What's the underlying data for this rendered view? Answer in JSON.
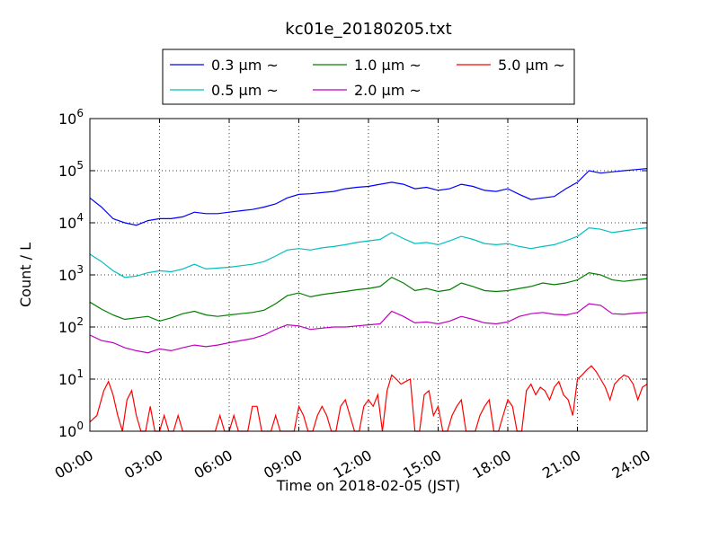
{
  "chart_data": {
    "type": "line",
    "title": "kc01e_20180205.txt",
    "xlabel": "Time on 2018-02-05 (JST)",
    "ylabel": "Count / L",
    "x_tick_labels": [
      "00:00",
      "03:00",
      "06:00",
      "09:00",
      "12:00",
      "15:00",
      "18:00",
      "21:00",
      "24:00"
    ],
    "x_tick_hours": [
      0,
      3,
      6,
      9,
      12,
      15,
      18,
      21,
      24
    ],
    "xlim_hours": [
      0,
      24
    ],
    "yscale": "log",
    "ylim": [
      1,
      1000000
    ],
    "y_tick_values": [
      1,
      10,
      100,
      1000,
      10000,
      100000,
      1000000
    ],
    "y_tick_labels": [
      {
        "base": "10",
        "exp": "0"
      },
      {
        "base": "10",
        "exp": "1"
      },
      {
        "base": "10",
        "exp": "2"
      },
      {
        "base": "10",
        "exp": "3"
      },
      {
        "base": "10",
        "exp": "4"
      },
      {
        "base": "10",
        "exp": "5"
      },
      {
        "base": "10",
        "exp": "6"
      }
    ],
    "grid": true,
    "legend_position": "top-center, above plot",
    "series": [
      {
        "name": "0.3 μm ~",
        "color": "#0000ff",
        "points": [
          [
            0,
            30000
          ],
          [
            0.5,
            20000
          ],
          [
            1,
            12000
          ],
          [
            1.5,
            10000
          ],
          [
            2,
            9000
          ],
          [
            2.5,
            11000
          ],
          [
            3,
            12000
          ],
          [
            3.5,
            12000
          ],
          [
            4,
            13000
          ],
          [
            4.5,
            16000
          ],
          [
            5,
            15000
          ],
          [
            5.5,
            15000
          ],
          [
            6,
            16000
          ],
          [
            6.5,
            17000
          ],
          [
            7,
            18000
          ],
          [
            7.5,
            20000
          ],
          [
            8,
            23000
          ],
          [
            8.5,
            30000
          ],
          [
            9,
            35000
          ],
          [
            9.5,
            36000
          ],
          [
            10,
            38000
          ],
          [
            10.5,
            40000
          ],
          [
            11,
            45000
          ],
          [
            11.5,
            48000
          ],
          [
            12,
            50000
          ],
          [
            12.5,
            55000
          ],
          [
            13,
            60000
          ],
          [
            13.5,
            55000
          ],
          [
            14,
            45000
          ],
          [
            14.5,
            48000
          ],
          [
            15,
            42000
          ],
          [
            15.5,
            45000
          ],
          [
            16,
            55000
          ],
          [
            16.5,
            50000
          ],
          [
            17,
            42000
          ],
          [
            17.5,
            40000
          ],
          [
            18,
            45000
          ],
          [
            18.5,
            35000
          ],
          [
            19,
            28000
          ],
          [
            19.5,
            30000
          ],
          [
            20,
            32000
          ],
          [
            20.5,
            45000
          ],
          [
            21,
            60000
          ],
          [
            21.5,
            100000
          ],
          [
            22,
            90000
          ],
          [
            22.5,
            95000
          ],
          [
            23,
            100000
          ],
          [
            23.5,
            105000
          ],
          [
            24,
            110000
          ]
        ]
      },
      {
        "name": "0.5 μm ~",
        "color": "#00bfbf",
        "points": [
          [
            0,
            2500
          ],
          [
            0.5,
            1800
          ],
          [
            1,
            1200
          ],
          [
            1.5,
            900
          ],
          [
            2,
            950
          ],
          [
            2.5,
            1100
          ],
          [
            3,
            1200
          ],
          [
            3.5,
            1150
          ],
          [
            4,
            1300
          ],
          [
            4.5,
            1600
          ],
          [
            5,
            1300
          ],
          [
            5.5,
            1350
          ],
          [
            6,
            1400
          ],
          [
            6.5,
            1500
          ],
          [
            7,
            1600
          ],
          [
            7.5,
            1800
          ],
          [
            8,
            2300
          ],
          [
            8.5,
            3000
          ],
          [
            9,
            3200
          ],
          [
            9.5,
            3000
          ],
          [
            10,
            3300
          ],
          [
            10.5,
            3500
          ],
          [
            11,
            3800
          ],
          [
            11.5,
            4200
          ],
          [
            12,
            4500
          ],
          [
            12.5,
            4800
          ],
          [
            13,
            6500
          ],
          [
            13.5,
            5000
          ],
          [
            14,
            4000
          ],
          [
            14.5,
            4200
          ],
          [
            15,
            3800
          ],
          [
            15.5,
            4500
          ],
          [
            16,
            5500
          ],
          [
            16.5,
            4800
          ],
          [
            17,
            4000
          ],
          [
            17.5,
            3800
          ],
          [
            18,
            4000
          ],
          [
            18.5,
            3500
          ],
          [
            19,
            3200
          ],
          [
            19.5,
            3500
          ],
          [
            20,
            3800
          ],
          [
            20.5,
            4500
          ],
          [
            21,
            5500
          ],
          [
            21.5,
            8000
          ],
          [
            22,
            7500
          ],
          [
            22.5,
            6500
          ],
          [
            23,
            7000
          ],
          [
            23.5,
            7500
          ],
          [
            24,
            8000
          ]
        ]
      },
      {
        "name": "1.0 μm ~",
        "color": "#008000",
        "points": [
          [
            0,
            300
          ],
          [
            0.5,
            220
          ],
          [
            1,
            170
          ],
          [
            1.5,
            140
          ],
          [
            2,
            150
          ],
          [
            2.5,
            160
          ],
          [
            3,
            130
          ],
          [
            3.5,
            150
          ],
          [
            4,
            180
          ],
          [
            4.5,
            200
          ],
          [
            5,
            170
          ],
          [
            5.5,
            160
          ],
          [
            6,
            170
          ],
          [
            6.5,
            180
          ],
          [
            7,
            190
          ],
          [
            7.5,
            210
          ],
          [
            8,
            280
          ],
          [
            8.5,
            400
          ],
          [
            9,
            450
          ],
          [
            9.5,
            380
          ],
          [
            10,
            420
          ],
          [
            10.5,
            450
          ],
          [
            11,
            480
          ],
          [
            11.5,
            520
          ],
          [
            12,
            550
          ],
          [
            12.5,
            600
          ],
          [
            13,
            900
          ],
          [
            13.5,
            700
          ],
          [
            14,
            500
          ],
          [
            14.5,
            550
          ],
          [
            15,
            480
          ],
          [
            15.5,
            520
          ],
          [
            16,
            700
          ],
          [
            16.5,
            600
          ],
          [
            17,
            500
          ],
          [
            17.5,
            480
          ],
          [
            18,
            500
          ],
          [
            18.5,
            550
          ],
          [
            19,
            600
          ],
          [
            19.5,
            700
          ],
          [
            20,
            650
          ],
          [
            20.5,
            700
          ],
          [
            21,
            800
          ],
          [
            21.5,
            1100
          ],
          [
            22,
            1000
          ],
          [
            22.5,
            800
          ],
          [
            23,
            750
          ],
          [
            23.5,
            800
          ],
          [
            24,
            850
          ]
        ]
      },
      {
        "name": "2.0 μm ~",
        "color": "#bf00bf",
        "points": [
          [
            0,
            70
          ],
          [
            0.5,
            55
          ],
          [
            1,
            50
          ],
          [
            1.5,
            40
          ],
          [
            2,
            35
          ],
          [
            2.5,
            32
          ],
          [
            3,
            38
          ],
          [
            3.5,
            35
          ],
          [
            4,
            40
          ],
          [
            4.5,
            45
          ],
          [
            5,
            42
          ],
          [
            5.5,
            45
          ],
          [
            6,
            50
          ],
          [
            6.5,
            55
          ],
          [
            7,
            60
          ],
          [
            7.5,
            70
          ],
          [
            8,
            90
          ],
          [
            8.5,
            110
          ],
          [
            9,
            105
          ],
          [
            9.5,
            90
          ],
          [
            10,
            95
          ],
          [
            10.5,
            100
          ],
          [
            11,
            100
          ],
          [
            11.5,
            105
          ],
          [
            12,
            110
          ],
          [
            12.5,
            115
          ],
          [
            13,
            200
          ],
          [
            13.5,
            160
          ],
          [
            14,
            120
          ],
          [
            14.5,
            125
          ],
          [
            15,
            115
          ],
          [
            15.5,
            130
          ],
          [
            16,
            160
          ],
          [
            16.5,
            140
          ],
          [
            17,
            120
          ],
          [
            17.5,
            115
          ],
          [
            18,
            125
          ],
          [
            18.5,
            160
          ],
          [
            19,
            180
          ],
          [
            19.5,
            190
          ],
          [
            20,
            175
          ],
          [
            20.5,
            170
          ],
          [
            21,
            190
          ],
          [
            21.5,
            280
          ],
          [
            22,
            260
          ],
          [
            22.5,
            180
          ],
          [
            23,
            175
          ],
          [
            23.5,
            185
          ],
          [
            24,
            190
          ]
        ]
      },
      {
        "name": "5.0 μm ~",
        "color": "#ff0000",
        "points": [
          [
            0,
            1.5
          ],
          [
            0.3,
            2
          ],
          [
            0.6,
            6
          ],
          [
            0.8,
            9
          ],
          [
            1,
            5
          ],
          [
            1.2,
            2
          ],
          [
            1.4,
            1
          ],
          [
            1.6,
            4
          ],
          [
            1.8,
            6
          ],
          [
            2,
            2
          ],
          [
            2.2,
            1
          ],
          [
            2.4,
            1
          ],
          [
            2.6,
            3
          ],
          [
            2.8,
            1
          ],
          [
            3,
            1
          ],
          [
            3.2,
            2
          ],
          [
            3.4,
            1
          ],
          [
            3.6,
            1
          ],
          [
            3.8,
            2
          ],
          [
            4,
            1
          ],
          [
            4.2,
            1
          ],
          [
            4.4,
            1
          ],
          [
            4.6,
            1
          ],
          [
            4.8,
            1
          ],
          [
            5,
            1
          ],
          [
            5.2,
            1
          ],
          [
            5.4,
            1
          ],
          [
            5.6,
            2
          ],
          [
            5.8,
            1
          ],
          [
            6,
            1
          ],
          [
            6.2,
            2
          ],
          [
            6.4,
            1
          ],
          [
            6.6,
            1
          ],
          [
            6.8,
            1
          ],
          [
            7,
            3
          ],
          [
            7.2,
            3
          ],
          [
            7.4,
            1
          ],
          [
            7.6,
            1
          ],
          [
            7.8,
            1
          ],
          [
            8,
            2
          ],
          [
            8.2,
            1
          ],
          [
            8.4,
            1
          ],
          [
            8.6,
            1
          ],
          [
            8.8,
            1
          ],
          [
            9,
            3
          ],
          [
            9.2,
            2
          ],
          [
            9.4,
            1
          ],
          [
            9.6,
            1
          ],
          [
            9.8,
            2
          ],
          [
            10,
            3
          ],
          [
            10.2,
            2
          ],
          [
            10.4,
            1
          ],
          [
            10.6,
            1
          ],
          [
            10.8,
            3
          ],
          [
            11,
            4
          ],
          [
            11.2,
            2
          ],
          [
            11.4,
            1
          ],
          [
            11.6,
            1
          ],
          [
            11.8,
            3
          ],
          [
            12,
            4
          ],
          [
            12.2,
            3
          ],
          [
            12.4,
            5
          ],
          [
            12.6,
            1
          ],
          [
            12.8,
            6
          ],
          [
            13,
            12
          ],
          [
            13.2,
            10
          ],
          [
            13.4,
            8
          ],
          [
            13.6,
            9
          ],
          [
            13.8,
            10
          ],
          [
            14,
            1
          ],
          [
            14.2,
            1
          ],
          [
            14.4,
            5
          ],
          [
            14.6,
            6
          ],
          [
            14.8,
            2
          ],
          [
            15,
            3
          ],
          [
            15.2,
            1
          ],
          [
            15.4,
            1
          ],
          [
            15.6,
            2
          ],
          [
            15.8,
            3
          ],
          [
            16,
            4
          ],
          [
            16.2,
            1
          ],
          [
            16.4,
            1
          ],
          [
            16.6,
            1
          ],
          [
            16.8,
            2
          ],
          [
            17,
            3
          ],
          [
            17.2,
            4
          ],
          [
            17.4,
            1
          ],
          [
            17.6,
            1
          ],
          [
            17.8,
            2
          ],
          [
            18,
            4
          ],
          [
            18.2,
            3
          ],
          [
            18.4,
            1
          ],
          [
            18.6,
            1
          ],
          [
            18.8,
            6
          ],
          [
            19,
            8
          ],
          [
            19.2,
            5
          ],
          [
            19.4,
            7
          ],
          [
            19.6,
            6
          ],
          [
            19.8,
            4
          ],
          [
            20,
            7
          ],
          [
            20.2,
            9
          ],
          [
            20.4,
            5
          ],
          [
            20.6,
            4
          ],
          [
            20.8,
            2
          ],
          [
            21,
            10
          ],
          [
            21.2,
            12
          ],
          [
            21.4,
            15
          ],
          [
            21.6,
            18
          ],
          [
            21.8,
            14
          ],
          [
            22,
            10
          ],
          [
            22.2,
            7
          ],
          [
            22.4,
            4
          ],
          [
            22.6,
            8
          ],
          [
            22.8,
            10
          ],
          [
            23,
            12
          ],
          [
            23.2,
            11
          ],
          [
            23.4,
            8
          ],
          [
            23.6,
            4
          ],
          [
            23.8,
            7
          ],
          [
            24,
            8
          ]
        ]
      }
    ]
  }
}
